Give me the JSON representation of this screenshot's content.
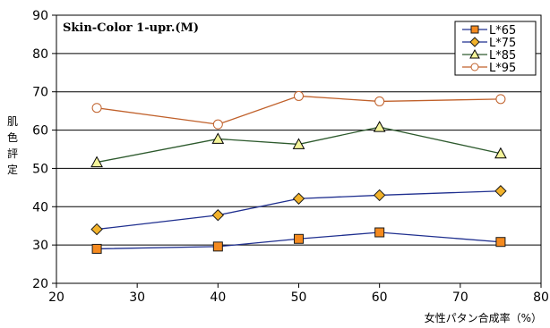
{
  "chart_data": {
    "type": "line",
    "title": "Skin-Color 1-upr.(M)",
    "xlabel": "女性パタン合成率（%）",
    "ylabel": "肌色評定",
    "xlim": [
      20,
      80
    ],
    "ylim": [
      20,
      90
    ],
    "x_ticks": [
      "20",
      "30",
      "40",
      "50",
      "60",
      "70",
      "80"
    ],
    "y_ticks": [
      "20",
      "30",
      "40",
      "50",
      "60",
      "70",
      "80",
      "90"
    ],
    "grid": "horizontal",
    "legend_position": "top-right",
    "x": [
      25,
      40,
      50,
      60,
      75
    ],
    "series": [
      {
        "name": "L*65",
        "values": [
          29.0,
          29.6,
          31.6,
          33.3,
          30.8
        ],
        "color": "#1f2f8f",
        "marker": "square",
        "marker_color": "#f58a1f"
      },
      {
        "name": "L*75",
        "values": [
          34.1,
          37.8,
          42.1,
          43.0,
          44.1
        ],
        "color": "#1f2f8f",
        "marker": "diamond",
        "marker_color": "#f2b22a"
      },
      {
        "name": "L*85",
        "values": [
          51.6,
          57.7,
          56.3,
          60.8,
          53.9
        ],
        "color": "#2d5a2d",
        "marker": "triangle",
        "marker_color": "#f4f49a"
      },
      {
        "name": "L*95",
        "values": [
          65.8,
          61.5,
          68.9,
          67.5,
          68.1
        ],
        "color": "#c0602a",
        "marker": "circle",
        "marker_color": "#ffffff"
      }
    ]
  }
}
